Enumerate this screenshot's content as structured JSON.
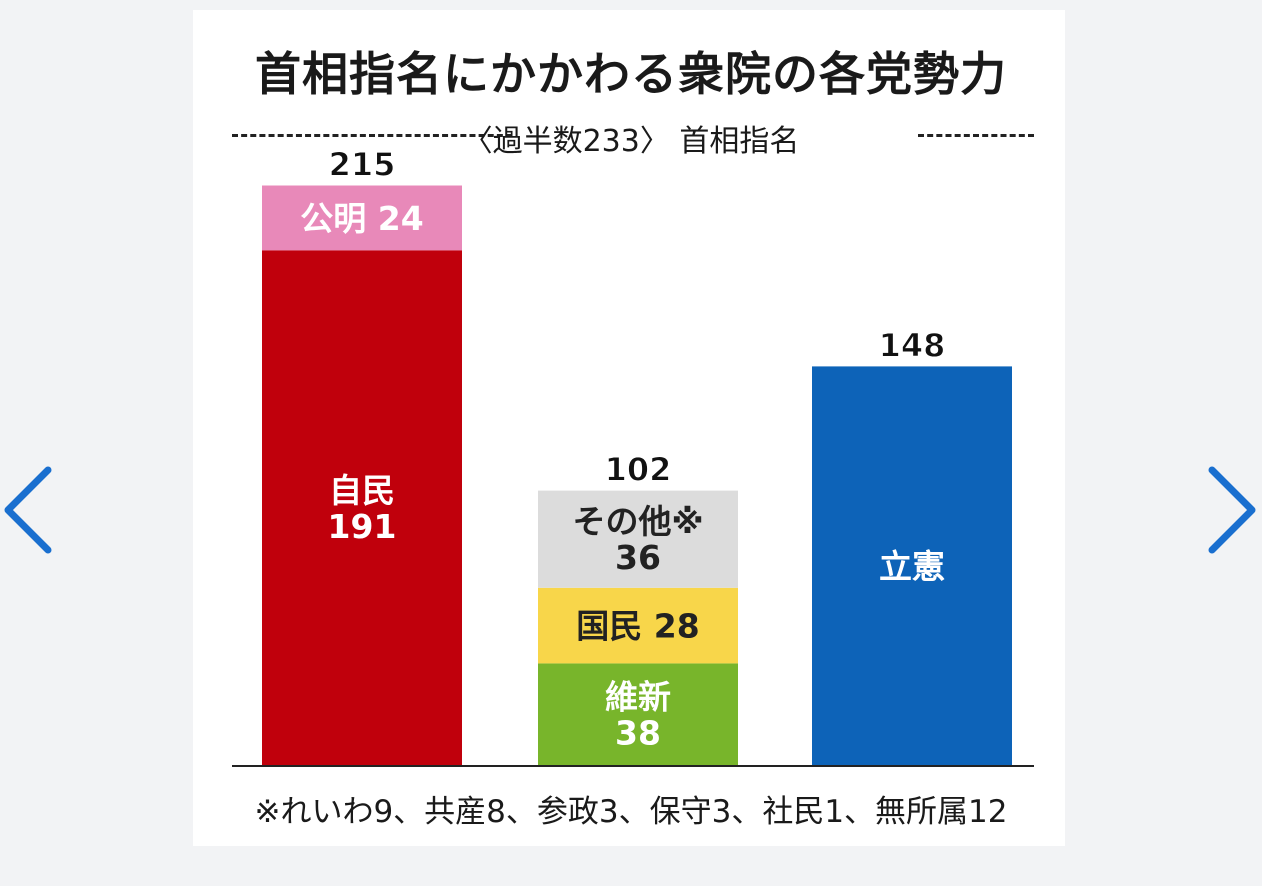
{
  "nav": {
    "prev_icon": "chevron-left-icon",
    "next_icon": "chevron-right-icon",
    "accent": "#1a6fcf"
  },
  "chart_data": {
    "type": "bar",
    "title": "首相指名にかかわる衆院の各党勢力",
    "subtitle": "〈過半数233〉 首相指名",
    "majority_line": 233,
    "footnote": "※れいわ9、共産8、参政3、保守3、社民1、無所属12",
    "bars": [
      {
        "total_label": "215",
        "segments": [
          {
            "name": "自民",
            "value": 191,
            "label_lines": [
              "自民",
              "191"
            ],
            "color": "#c0000c",
            "text_color": "#ffffff"
          },
          {
            "name": "公明",
            "value": 24,
            "label_lines": [
              "公明 24"
            ],
            "color": "#e889b9",
            "text_color": "#ffffff"
          }
        ]
      },
      {
        "total_label": "102",
        "segments": [
          {
            "name": "維新",
            "value": 38,
            "label_lines": [
              "維新",
              "38"
            ],
            "color": "#78b52b",
            "text_color": "#ffffff"
          },
          {
            "name": "国民",
            "value": 28,
            "label_lines": [
              "国民 28"
            ],
            "color": "#f8d64a",
            "text_color": "#222222"
          },
          {
            "name": "その他※",
            "value": 36,
            "label_lines": [
              "その他※",
              "36"
            ],
            "color": "#dcdcdc",
            "text_color": "#222222"
          }
        ]
      },
      {
        "total_label": "148",
        "segments": [
          {
            "name": "立憲",
            "value": 148,
            "label_lines": [
              "立憲"
            ],
            "color": "#0d63b8",
            "text_color": "#ffffff"
          }
        ]
      }
    ]
  }
}
